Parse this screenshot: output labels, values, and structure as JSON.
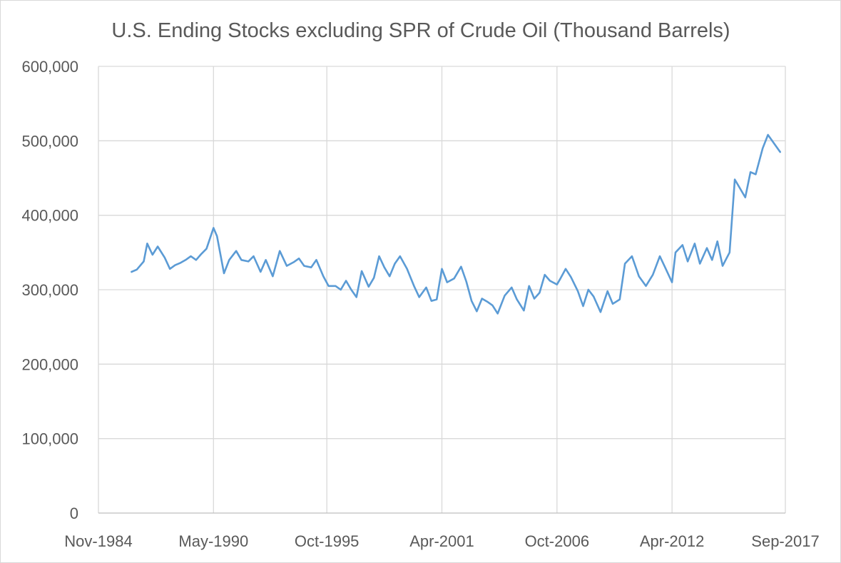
{
  "chart_data": {
    "type": "line",
    "title": "U.S. Ending Stocks excluding SPR of Crude Oil (Thousand Barrels)",
    "xlabel": "",
    "ylabel": "",
    "ylim": [
      0,
      600000
    ],
    "xlim": [
      "1984-11",
      "2017-09"
    ],
    "y_ticks": [
      0,
      100000,
      200000,
      300000,
      400000,
      500000,
      600000
    ],
    "y_tick_labels": [
      "0",
      "100,000",
      "200,000",
      "300,000",
      "400,000",
      "500,000",
      "600,000"
    ],
    "x_ticks": [
      "1984-11",
      "1990-05",
      "1995-10",
      "2001-04",
      "2006-10",
      "2012-04",
      "2017-09"
    ],
    "x_tick_labels": [
      "Nov-1984",
      "May-1990",
      "Oct-1995",
      "Apr-2001",
      "Oct-2006",
      "Apr-2012",
      "Sep-2017"
    ],
    "grid": true,
    "legend": "none",
    "line_color": "#5b9bd5",
    "series": [
      {
        "x": [
          "1986-06",
          "1986-09",
          "1987-01",
          "1987-03",
          "1987-06",
          "1987-09",
          "1988-01",
          "1988-04",
          "1988-07",
          "1988-10",
          "1989-01",
          "1989-04",
          "1989-07",
          "1989-10",
          "1990-01",
          "1990-05",
          "1990-07",
          "1990-11",
          "1991-02",
          "1991-06",
          "1991-09",
          "1992-01",
          "1992-04",
          "1992-08",
          "1992-11",
          "1993-03",
          "1993-07",
          "1993-11",
          "1994-03",
          "1994-06",
          "1994-09",
          "1995-01",
          "1995-04",
          "1995-08",
          "1995-11",
          "1996-03",
          "1996-06",
          "1996-09",
          "1996-12",
          "1997-03",
          "1997-06",
          "1997-10",
          "1998-01",
          "1998-04",
          "1998-07",
          "1998-10",
          "1999-01",
          "1999-04",
          "1999-08",
          "1999-12",
          "2000-03",
          "2000-07",
          "2000-10",
          "2001-01",
          "2001-04",
          "2001-07",
          "2001-11",
          "2002-03",
          "2002-06",
          "2002-09",
          "2002-12",
          "2003-03",
          "2003-06",
          "2003-09",
          "2003-12",
          "2004-04",
          "2004-08",
          "2004-11",
          "2005-03",
          "2005-06",
          "2005-09",
          "2005-12",
          "2006-03",
          "2006-06",
          "2006-10",
          "2006-12",
          "2007-03",
          "2007-06",
          "2007-10",
          "2008-01",
          "2008-04",
          "2008-07",
          "2008-11",
          "2009-03",
          "2009-06",
          "2009-10",
          "2010-01",
          "2010-05",
          "2010-09",
          "2011-01",
          "2011-05",
          "2011-09",
          "2011-12",
          "2012-04",
          "2012-06",
          "2012-10",
          "2013-01",
          "2013-05",
          "2013-08",
          "2013-12",
          "2014-03",
          "2014-06",
          "2014-09",
          "2015-01",
          "2015-04",
          "2015-06",
          "2015-10",
          "2016-01",
          "2016-04",
          "2016-08",
          "2016-11",
          "2017-03",
          "2017-06"
        ],
        "values": [
          324000,
          327000,
          338000,
          362000,
          347000,
          358000,
          343000,
          328000,
          333000,
          336000,
          340000,
          345000,
          340000,
          348000,
          355000,
          383000,
          372000,
          322000,
          340000,
          352000,
          340000,
          338000,
          345000,
          324000,
          340000,
          318000,
          352000,
          332000,
          337000,
          342000,
          332000,
          330000,
          340000,
          318000,
          305000,
          305000,
          300000,
          312000,
          300000,
          290000,
          325000,
          304000,
          316000,
          345000,
          330000,
          318000,
          335000,
          345000,
          328000,
          305000,
          290000,
          303000,
          285000,
          287000,
          328000,
          310000,
          315000,
          331000,
          311000,
          285000,
          271000,
          288000,
          284000,
          279000,
          268000,
          292000,
          303000,
          287000,
          272000,
          305000,
          288000,
          296000,
          320000,
          312000,
          307000,
          315000,
          328000,
          317000,
          298000,
          278000,
          300000,
          291000,
          270000,
          298000,
          281000,
          287000,
          335000,
          345000,
          318000,
          305000,
          320000,
          345000,
          330000,
          310000,
          350000,
          360000,
          338000,
          362000,
          335000,
          356000,
          340000,
          365000,
          332000,
          350000,
          448000,
          440000,
          424000,
          458000,
          455000,
          490000,
          508000,
          495000,
          485000
        ]
      }
    ]
  }
}
